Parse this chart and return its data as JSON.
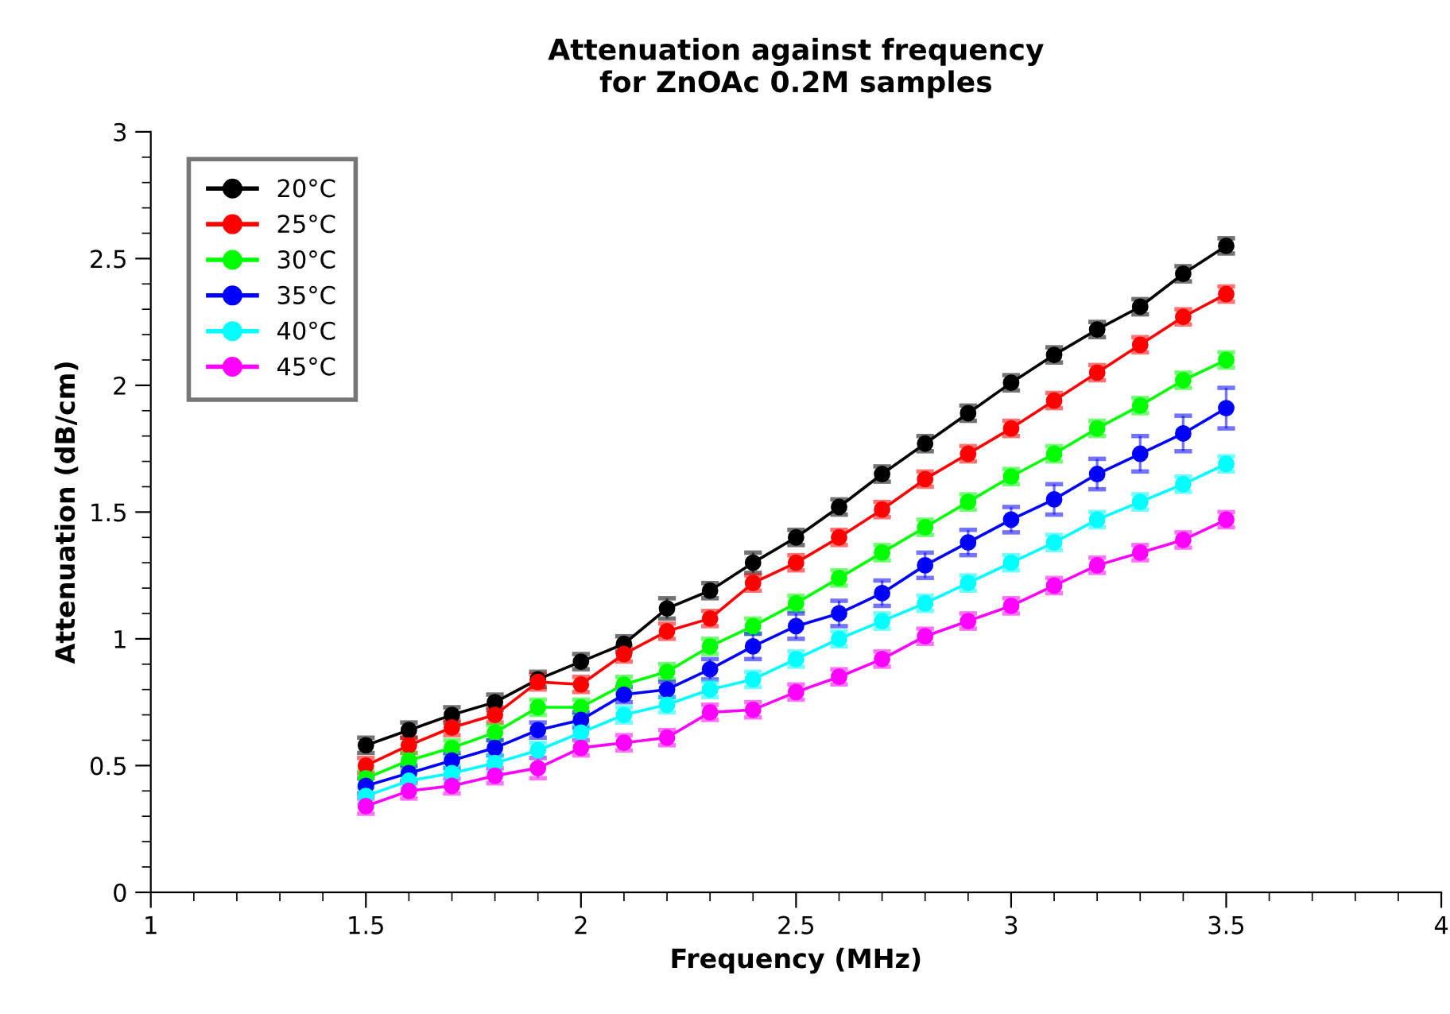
{
  "chart_data": {
    "type": "line",
    "title": "Attenuation against frequency\nfor ZnOAc 0.2M samples",
    "xlabel": "Frequency (MHz)",
    "ylabel": "Attenuation (dB/cm)",
    "x": [
      1.5,
      1.6,
      1.7,
      1.8,
      1.9,
      2.0,
      2.1,
      2.2,
      2.3,
      2.4,
      2.5,
      2.6,
      2.7,
      2.8,
      2.9,
      3.0,
      3.1,
      3.2,
      3.3,
      3.4,
      3.5
    ],
    "series": [
      {
        "name": "20°C",
        "color": "#000000",
        "values": [
          0.58,
          0.64,
          0.7,
          0.75,
          0.84,
          0.91,
          0.98,
          1.12,
          1.19,
          1.3,
          1.4,
          1.52,
          1.65,
          1.77,
          1.89,
          2.01,
          2.12,
          2.22,
          2.31,
          2.44,
          2.55
        ],
        "errors": [
          0.03,
          0.03,
          0.03,
          0.03,
          0.03,
          0.03,
          0.03,
          0.04,
          0.03,
          0.04,
          0.03,
          0.03,
          0.03,
          0.03,
          0.03,
          0.03,
          0.03,
          0.03,
          0.03,
          0.03,
          0.03
        ]
      },
      {
        "name": "25°C",
        "color": "#ff0000",
        "values": [
          0.5,
          0.58,
          0.65,
          0.7,
          0.83,
          0.82,
          0.94,
          1.03,
          1.08,
          1.22,
          1.3,
          1.4,
          1.51,
          1.63,
          1.73,
          1.83,
          1.94,
          2.05,
          2.16,
          2.27,
          2.36
        ],
        "errors": [
          0.03,
          0.03,
          0.03,
          0.03,
          0.03,
          0.03,
          0.03,
          0.03,
          0.03,
          0.03,
          0.03,
          0.03,
          0.03,
          0.03,
          0.03,
          0.03,
          0.03,
          0.03,
          0.03,
          0.03,
          0.03
        ]
      },
      {
        "name": "30°C",
        "color": "#00ff00",
        "values": [
          0.45,
          0.52,
          0.57,
          0.63,
          0.73,
          0.73,
          0.82,
          0.87,
          0.97,
          1.05,
          1.14,
          1.24,
          1.34,
          1.44,
          1.54,
          1.64,
          1.73,
          1.83,
          1.92,
          2.02,
          2.1
        ],
        "errors": [
          0.03,
          0.03,
          0.03,
          0.03,
          0.03,
          0.03,
          0.03,
          0.03,
          0.03,
          0.03,
          0.03,
          0.03,
          0.03,
          0.03,
          0.03,
          0.03,
          0.03,
          0.03,
          0.03,
          0.03,
          0.03
        ]
      },
      {
        "name": "35°C",
        "color": "#0000ff",
        "values": [
          0.42,
          0.47,
          0.52,
          0.57,
          0.64,
          0.68,
          0.78,
          0.8,
          0.88,
          0.97,
          1.05,
          1.1,
          1.18,
          1.29,
          1.38,
          1.47,
          1.55,
          1.65,
          1.73,
          1.81,
          1.91
        ],
        "errors": [
          0.03,
          0.03,
          0.03,
          0.03,
          0.03,
          0.03,
          0.03,
          0.03,
          0.04,
          0.05,
          0.05,
          0.05,
          0.05,
          0.05,
          0.05,
          0.05,
          0.06,
          0.06,
          0.07,
          0.07,
          0.08
        ]
      },
      {
        "name": "40°C",
        "color": "#00ffff",
        "values": [
          0.38,
          0.44,
          0.47,
          0.51,
          0.56,
          0.63,
          0.7,
          0.74,
          0.8,
          0.84,
          0.92,
          1.0,
          1.07,
          1.14,
          1.22,
          1.3,
          1.38,
          1.47,
          1.54,
          1.61,
          1.69
        ],
        "errors": [
          0.03,
          0.03,
          0.03,
          0.03,
          0.03,
          0.03,
          0.03,
          0.03,
          0.03,
          0.03,
          0.03,
          0.03,
          0.03,
          0.03,
          0.03,
          0.03,
          0.03,
          0.03,
          0.03,
          0.03,
          0.03
        ]
      },
      {
        "name": "45°C",
        "color": "#ff00ff",
        "values": [
          0.34,
          0.4,
          0.42,
          0.46,
          0.49,
          0.57,
          0.59,
          0.61,
          0.71,
          0.72,
          0.79,
          0.85,
          0.92,
          1.01,
          1.07,
          1.13,
          1.21,
          1.29,
          1.34,
          1.39,
          1.47
        ],
        "errors": [
          0.03,
          0.03,
          0.03,
          0.03,
          0.04,
          0.03,
          0.03,
          0.03,
          0.03,
          0.03,
          0.03,
          0.03,
          0.03,
          0.03,
          0.03,
          0.03,
          0.03,
          0.03,
          0.03,
          0.03,
          0.03
        ]
      }
    ],
    "xlim": [
      1,
      4
    ],
    "xticks": [
      1,
      1.5,
      2,
      2.5,
      3,
      3.5,
      4
    ],
    "ylim": [
      0,
      3
    ],
    "yticks": [
      0,
      0.5,
      1,
      1.5,
      2,
      2.5,
      3
    ],
    "marker": "circle",
    "line_style": "solid",
    "legend": "top left",
    "grid": false
  }
}
